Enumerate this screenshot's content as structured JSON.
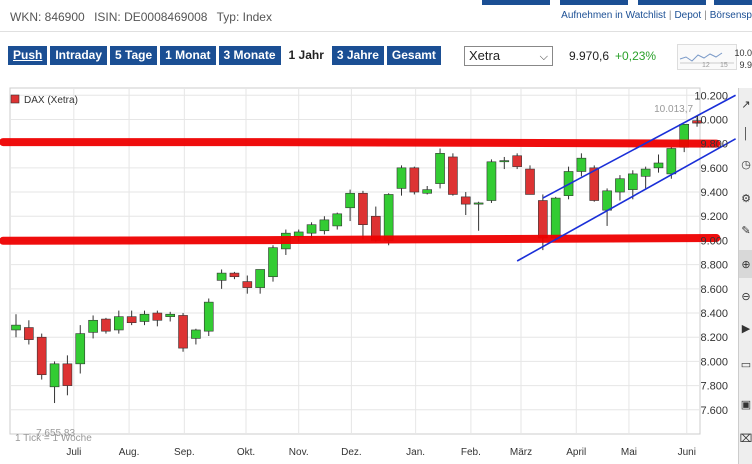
{
  "header": {
    "wkn": "WKN: 846900",
    "isin": "ISIN: DE0008469008",
    "typ": "Typ: Index",
    "link_watchlist": "Aufnehmen in Watchlist",
    "link_depot": "Depot",
    "link_boersen": "Börsensp"
  },
  "toolbar": {
    "tabs": [
      "Push",
      "Intraday",
      "5 Tage",
      "1 Monat",
      "3 Monate",
      "1 Jahr",
      "3 Jahre",
      "Gesamt"
    ],
    "selected": "1 Jahr"
  },
  "exchange": {
    "selected": "Xetra"
  },
  "quote": {
    "price": "9.970,6",
    "change": "+0,23%"
  },
  "minichart": {
    "labels": [
      "12",
      "15"
    ],
    "values": [
      "10.0",
      "9.9"
    ]
  },
  "chart_data": {
    "type": "candlestick",
    "legend": "DAX (Xetra)",
    "footnote": "1 Tick = 1 Woche",
    "max_label": "10.013,7",
    "min_label": "7.655,83",
    "ylim": [
      7400,
      10260
    ],
    "yticks": [
      7600,
      7800,
      8000,
      8200,
      8400,
      8600,
      8800,
      9000,
      9200,
      9400,
      9600,
      9800,
      10000,
      10200
    ],
    "ytick_labels": [
      "7.600",
      "7.800",
      "8.000",
      "8.200",
      "8.400",
      "8.600",
      "8.800",
      "9.000",
      "9.200",
      "9.400",
      "9.600",
      "9.800",
      "10.000",
      "10.200"
    ],
    "xticks": [
      {
        "label": "Juli",
        "week": 4.5
      },
      {
        "label": "Aug.",
        "week": 8.8
      },
      {
        "label": "Sep.",
        "week": 13.1
      },
      {
        "label": "Okt.",
        "week": 17.9
      },
      {
        "label": "Nov.",
        "week": 22.0
      },
      {
        "label": "Dez.",
        "week": 26.1
      },
      {
        "label": "Jan.",
        "week": 31.1
      },
      {
        "label": "Feb.",
        "week": 35.4
      },
      {
        "label": "März",
        "week": 39.3
      },
      {
        "label": "April",
        "week": 43.6
      },
      {
        "label": "Mai",
        "week": 47.7
      },
      {
        "label": "Juni",
        "week": 52.2
      }
    ],
    "candles": [
      {
        "o": 8260,
        "h": 8390,
        "l": 8200,
        "c": 8300
      },
      {
        "o": 8280,
        "h": 8340,
        "l": 8140,
        "c": 8180
      },
      {
        "o": 8200,
        "h": 8230,
        "l": 7850,
        "c": 7890
      },
      {
        "o": 7790,
        "h": 8000,
        "l": 7656,
        "c": 7980
      },
      {
        "o": 7980,
        "h": 8050,
        "l": 7720,
        "c": 7800
      },
      {
        "o": 7980,
        "h": 8300,
        "l": 7900,
        "c": 8230
      },
      {
        "o": 8240,
        "h": 8380,
        "l": 8190,
        "c": 8340
      },
      {
        "o": 8350,
        "h": 8360,
        "l": 8230,
        "c": 8250
      },
      {
        "o": 8260,
        "h": 8420,
        "l": 8230,
        "c": 8370
      },
      {
        "o": 8370,
        "h": 8420,
        "l": 8300,
        "c": 8320
      },
      {
        "o": 8330,
        "h": 8420,
        "l": 8300,
        "c": 8390
      },
      {
        "o": 8400,
        "h": 8420,
        "l": 8290,
        "c": 8340
      },
      {
        "o": 8370,
        "h": 8410,
        "l": 8330,
        "c": 8390
      },
      {
        "o": 8380,
        "h": 8400,
        "l": 8080,
        "c": 8110
      },
      {
        "o": 8190,
        "h": 8270,
        "l": 8140,
        "c": 8260
      },
      {
        "o": 8250,
        "h": 8520,
        "l": 8210,
        "c": 8490
      },
      {
        "o": 8670,
        "h": 8760,
        "l": 8600,
        "c": 8730
      },
      {
        "o": 8730,
        "h": 8740,
        "l": 8680,
        "c": 8700
      },
      {
        "o": 8660,
        "h": 8710,
        "l": 8560,
        "c": 8610
      },
      {
        "o": 8610,
        "h": 8740,
        "l": 8560,
        "c": 8760
      },
      {
        "o": 8700,
        "h": 8960,
        "l": 8660,
        "c": 8940
      },
      {
        "o": 8930,
        "h": 9090,
        "l": 8880,
        "c": 9060
      },
      {
        "o": 9030,
        "h": 9090,
        "l": 8990,
        "c": 9070
      },
      {
        "o": 9060,
        "h": 9150,
        "l": 9020,
        "c": 9130
      },
      {
        "o": 9080,
        "h": 9200,
        "l": 9050,
        "c": 9170
      },
      {
        "o": 9120,
        "h": 9230,
        "l": 9090,
        "c": 9220
      },
      {
        "o": 9270,
        "h": 9420,
        "l": 9160,
        "c": 9390
      },
      {
        "o": 9390,
        "h": 9410,
        "l": 9010,
        "c": 9130
      },
      {
        "o": 9200,
        "h": 9280,
        "l": 8990,
        "c": 9000
      },
      {
        "o": 9000,
        "h": 9390,
        "l": 8960,
        "c": 9380
      },
      {
        "o": 9430,
        "h": 9620,
        "l": 9370,
        "c": 9600
      },
      {
        "o": 9600,
        "h": 9610,
        "l": 9380,
        "c": 9400
      },
      {
        "o": 9390,
        "h": 9450,
        "l": 9380,
        "c": 9420
      },
      {
        "o": 9470,
        "h": 9760,
        "l": 9430,
        "c": 9720
      },
      {
        "o": 9690,
        "h": 9720,
        "l": 9370,
        "c": 9380
      },
      {
        "o": 9360,
        "h": 9400,
        "l": 9210,
        "c": 9300
      },
      {
        "o": 9300,
        "h": 9320,
        "l": 9080,
        "c": 9310
      },
      {
        "o": 9330,
        "h": 9670,
        "l": 9310,
        "c": 9650
      },
      {
        "o": 9650,
        "h": 9690,
        "l": 9590,
        "c": 9660
      },
      {
        "o": 9700,
        "h": 9720,
        "l": 9590,
        "c": 9610
      },
      {
        "o": 9590,
        "h": 9620,
        "l": 9380,
        "c": 9380
      },
      {
        "o": 9330,
        "h": 9380,
        "l": 8920,
        "c": 9020
      },
      {
        "o": 9020,
        "h": 9360,
        "l": 8990,
        "c": 9350
      },
      {
        "o": 9370,
        "h": 9610,
        "l": 9340,
        "c": 9570
      },
      {
        "o": 9570,
        "h": 9720,
        "l": 9530,
        "c": 9680
      },
      {
        "o": 9600,
        "h": 9620,
        "l": 9320,
        "c": 9330
      },
      {
        "o": 9250,
        "h": 9430,
        "l": 9120,
        "c": 9410
      },
      {
        "o": 9400,
        "h": 9540,
        "l": 9330,
        "c": 9510
      },
      {
        "o": 9420,
        "h": 9580,
        "l": 9340,
        "c": 9550
      },
      {
        "o": 9530,
        "h": 9610,
        "l": 9430,
        "c": 9590
      },
      {
        "o": 9600,
        "h": 9710,
        "l": 9560,
        "c": 9640
      },
      {
        "o": 9550,
        "h": 9770,
        "l": 9510,
        "c": 9760
      },
      {
        "o": 9770,
        "h": 9960,
        "l": 9730,
        "c": 9960
      },
      {
        "o": 9990,
        "h": 10014,
        "l": 9940,
        "c": 9970
      }
    ],
    "annotations": {
      "red_band": {
        "upper": [
          [
            -1,
            9813
          ],
          [
            19.5,
            9813
          ],
          [
            54.5,
            9800
          ]
        ],
        "lower": [
          [
            -1,
            8997
          ],
          [
            19.5,
            9003
          ],
          [
            54.5,
            9020
          ]
        ]
      },
      "blue_channel": {
        "lower": [
          [
            39,
            8830
          ],
          [
            56,
            9840
          ]
        ],
        "upper": [
          [
            41,
            9350
          ],
          [
            56,
            10200
          ]
        ]
      }
    }
  }
}
